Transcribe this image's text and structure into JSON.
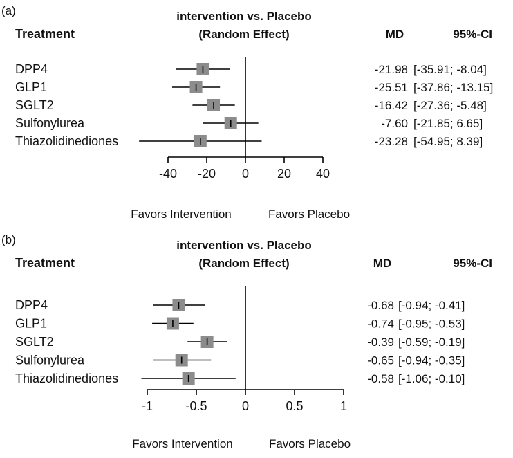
{
  "chart_data": [
    {
      "type": "forest",
      "panel_label": "(a)",
      "title_line1": "intervention vs. Placebo",
      "title_line2": "(Random Effect)",
      "treatment_header": "Treatment",
      "md_header": "MD",
      "ci_header": "95%-CI",
      "xlim": [
        -40,
        40
      ],
      "ticks": [
        {
          "value": -40,
          "label": "-40"
        },
        {
          "value": -20,
          "label": "-20"
        },
        {
          "value": 0,
          "label": "0"
        },
        {
          "value": 20,
          "label": "20"
        },
        {
          "value": 40,
          "label": "40"
        }
      ],
      "favors_left": "Favors Intervention",
      "favors_right": "Favors Placebo",
      "rows": [
        {
          "label": "DPP4",
          "md": -21.98,
          "lo": -35.91,
          "hi": -8.04,
          "md_text": "-21.98",
          "ci_text": "[-35.91;  -8.04]"
        },
        {
          "label": "GLP1",
          "md": -25.51,
          "lo": -37.86,
          "hi": -13.15,
          "md_text": "-25.51",
          "ci_text": "[-37.86; -13.15]"
        },
        {
          "label": "SGLT2",
          "md": -16.42,
          "lo": -27.36,
          "hi": -5.48,
          "md_text": "-16.42",
          "ci_text": "[-27.36;  -5.48]"
        },
        {
          "label": "Sulfonylurea",
          "md": -7.6,
          "lo": -21.85,
          "hi": 6.65,
          "md_text": "-7.60",
          "ci_text": "[-21.85;   6.65]"
        },
        {
          "label": "Thiazolidinediones",
          "md": -23.28,
          "lo": -54.95,
          "hi": 8.39,
          "md_text": "-23.28",
          "ci_text": "[-54.95;   8.39]"
        }
      ]
    },
    {
      "type": "forest",
      "panel_label": "(b)",
      "title_line1": "intervention vs. Placebo",
      "title_line2": "(Random Effect)",
      "treatment_header": "Treatment",
      "md_header": "MD",
      "ci_header": "95%-CI",
      "xlim": [
        -1,
        1
      ],
      "ticks": [
        {
          "value": -1,
          "label": "-1"
        },
        {
          "value": -0.5,
          "label": "-0.5"
        },
        {
          "value": 0,
          "label": "0"
        },
        {
          "value": 0.5,
          "label": "0.5"
        },
        {
          "value": 1,
          "label": "1"
        }
      ],
      "favors_left": "Favors Intervention",
      "favors_right": "Favors Placebo",
      "rows": [
        {
          "label": "DPP4",
          "md": -0.68,
          "lo": -0.94,
          "hi": -0.41,
          "md_text": "-0.68",
          "ci_text": "[-0.94; -0.41]"
        },
        {
          "label": "GLP1",
          "md": -0.74,
          "lo": -0.95,
          "hi": -0.53,
          "md_text": "-0.74",
          "ci_text": "[-0.95; -0.53]"
        },
        {
          "label": "SGLT2",
          "md": -0.39,
          "lo": -0.59,
          "hi": -0.19,
          "md_text": "-0.39",
          "ci_text": "[-0.59; -0.19]"
        },
        {
          "label": "Sulfonylurea",
          "md": -0.65,
          "lo": -0.94,
          "hi": -0.35,
          "md_text": "-0.65",
          "ci_text": "[-0.94; -0.35]"
        },
        {
          "label": "Thiazolidinediones",
          "md": -0.58,
          "lo": -1.06,
          "hi": -0.1,
          "md_text": "-0.58",
          "ci_text": "[-1.06; -0.10]"
        }
      ]
    }
  ],
  "colors": {
    "marker": "#8c8c8c",
    "line": "#000000",
    "text": "#111111"
  }
}
